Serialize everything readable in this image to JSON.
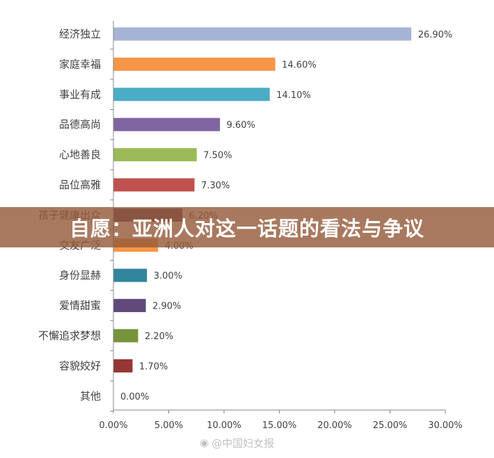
{
  "chart_data": {
    "type": "bar",
    "orientation": "horizontal",
    "categories": [
      "经济独立",
      "家庭幸福",
      "事业有成",
      "品德高尚",
      "心地善良",
      "品位高雅",
      "孩子健康出众",
      "交友广泛",
      "身份显赫",
      "爱情甜蜜",
      "不懈追求梦想",
      "容貌姣好",
      "其他"
    ],
    "values": [
      26.9,
      14.6,
      14.1,
      9.6,
      7.5,
      7.3,
      6.2,
      4.0,
      3.0,
      2.9,
      2.2,
      1.7,
      0.0
    ],
    "value_labels": [
      "26.90%",
      "14.60%",
      "14.10%",
      "9.60%",
      "7.50%",
      "7.30%",
      "6.20%",
      "4.00%",
      "3.00%",
      "2.90%",
      "2.20%",
      "1.70%",
      "0.00%"
    ],
    "colors": [
      "#A5B4D6",
      "#F79646",
      "#4BACC6",
      "#8064A2",
      "#9BBB59",
      "#C0504D",
      "#4F3B60",
      "#F79646",
      "#31859C",
      "#604A7B",
      "#77933C",
      "#953735",
      "#7F7F7F"
    ],
    "xlim": [
      0,
      30
    ],
    "xticks": [
      0,
      5,
      10,
      15,
      20,
      25,
      30
    ],
    "xtick_labels": [
      "0.00%",
      "5.00%",
      "10.00%",
      "15.00%",
      "20.00%",
      "25.00%",
      "30.00%"
    ],
    "grid": false,
    "title": "",
    "xlabel": "",
    "ylabel": ""
  },
  "overlay": {
    "banner_text": "自愿：亚洲人对这一话题的看法与争议",
    "watermark_text": "@中国妇女报",
    "watermark_icon": "weibo-icon"
  }
}
